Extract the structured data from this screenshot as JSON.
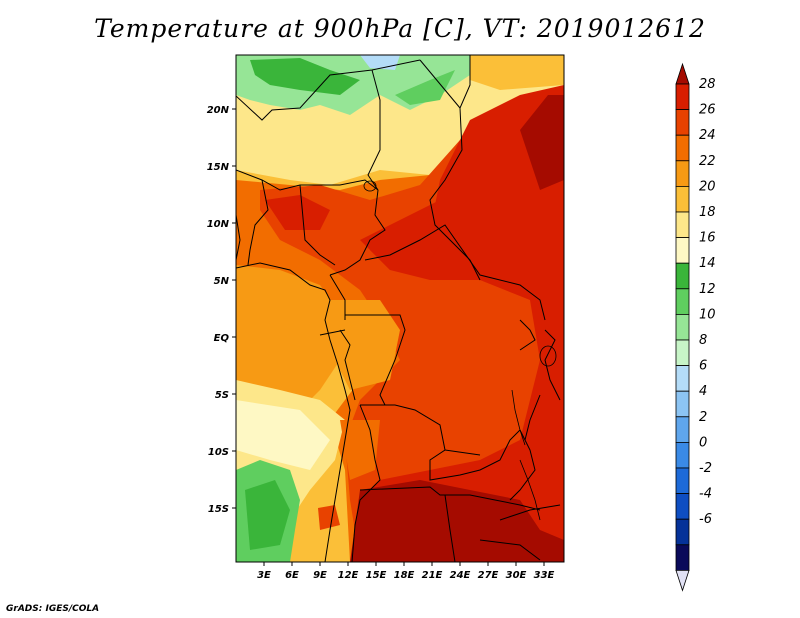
{
  "title": "Temperature at 900hPa [C], VT: 2019012612",
  "credit": "GrADS: IGES/COLA",
  "map": {
    "lat_ticks": [
      "20N",
      "15N",
      "10N",
      "5N",
      "EQ",
      "5S",
      "10S",
      "15S"
    ],
    "lon_ticks": [
      "3E",
      "6E",
      "9E",
      "12E",
      "15E",
      "18E",
      "21E",
      "24E",
      "27E",
      "30E",
      "33E"
    ]
  },
  "colorbar": {
    "labels": [
      "28",
      "26",
      "24",
      "22",
      "20",
      "18",
      "16",
      "14",
      "12",
      "10",
      "8",
      "6",
      "4",
      "2",
      "0",
      "-2",
      "-4",
      "-6"
    ],
    "colors": [
      "#a50b00",
      "#d81e00",
      "#e84200",
      "#f26d00",
      "#f79a14",
      "#fbbf38",
      "#fde78a",
      "#fef8c4",
      "#3ab53a",
      "#5fce5f",
      "#96e596",
      "#c8f5c8",
      "#b4dcf8",
      "#8cc4f3",
      "#5fa6ed",
      "#3a8ae6",
      "#1d6ad8",
      "#0e4ec2",
      "#053299",
      "#0a0a5a",
      "#e2e2f5"
    ]
  }
}
